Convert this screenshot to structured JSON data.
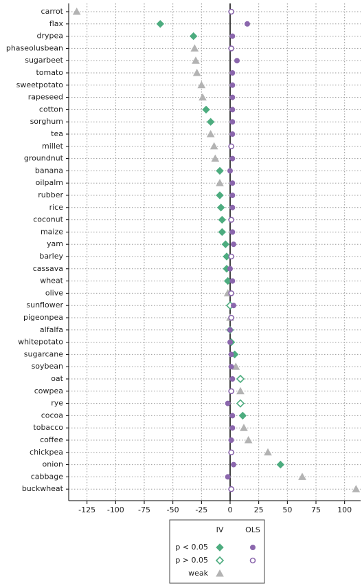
{
  "chart_data": {
    "type": "dot",
    "categories": [
      "carrot",
      "flax",
      "drypea",
      "phaseolusbean",
      "sugarbeet",
      "tomato",
      "sweetpotato",
      "rapeseed",
      "cotton",
      "sorghum",
      "tea",
      "millet",
      "groundnut",
      "banana",
      "oilpalm",
      "rubber",
      "rice",
      "coconut",
      "maize",
      "yam",
      "barley",
      "cassava",
      "wheat",
      "olive",
      "sunflower",
      "pigeonpea",
      "alfalfa",
      "whitepotato",
      "sugarcane",
      "soybean",
      "oat",
      "cowpea",
      "rye",
      "cocoa",
      "tobacco",
      "coffee",
      "chickpea",
      "onion",
      "cabbage",
      "buckwheat"
    ],
    "series": [
      {
        "name": "IV",
        "color": "#4dac7f",
        "values": [
          -134,
          -61,
          -32,
          -31,
          -30,
          -29,
          -25,
          -24,
          -21,
          -17,
          -17,
          -14,
          -13,
          -9,
          -9,
          -9,
          -8,
          -7,
          -7,
          -4,
          -3,
          -3,
          -2,
          -2,
          0,
          0,
          0,
          1,
          4,
          5,
          9,
          9,
          9,
          11,
          12,
          16,
          33,
          44,
          63,
          110
        ],
        "status": [
          "weak",
          "p < 0.05",
          "p < 0.05",
          "weak",
          "weak",
          "weak",
          "weak",
          "weak",
          "p < 0.05",
          "p < 0.05",
          "weak",
          "weak",
          "weak",
          "p < 0.05",
          "weak",
          "p < 0.05",
          "p < 0.05",
          "p < 0.05",
          "p < 0.05",
          "p < 0.05",
          "p < 0.05",
          "p < 0.05",
          "p < 0.05",
          "weak",
          "p > 0.05",
          "weak",
          "p < 0.05",
          "p < 0.05",
          "p < 0.05",
          "weak",
          "p > 0.05",
          "weak",
          "p > 0.05",
          "p < 0.05",
          "weak",
          "weak",
          "weak",
          "p < 0.05",
          "weak",
          "weak"
        ]
      },
      {
        "name": "OLS",
        "color": "#8b67ad",
        "values": [
          1,
          15,
          2,
          1,
          6,
          2,
          2,
          2,
          2,
          2,
          2,
          1,
          2,
          0,
          2,
          2,
          2,
          1,
          2,
          3,
          1,
          0,
          2,
          1,
          3,
          1,
          0,
          0,
          1,
          1,
          2,
          1,
          -2,
          2,
          2,
          1,
          1,
          3,
          -2,
          1
        ],
        "status": [
          "p > 0.05",
          "p < 0.05",
          "p < 0.05",
          "p > 0.05",
          "p < 0.05",
          "p < 0.05",
          "p < 0.05",
          "p < 0.05",
          "p < 0.05",
          "p < 0.05",
          "p < 0.05",
          "p > 0.05",
          "p < 0.05",
          "p < 0.05",
          "p < 0.05",
          "p < 0.05",
          "p < 0.05",
          "p > 0.05",
          "p < 0.05",
          "p < 0.05",
          "p > 0.05",
          "p < 0.05",
          "p < 0.05",
          "p > 0.05",
          "p < 0.05",
          "p > 0.05",
          "p < 0.05",
          "p < 0.05",
          "p < 0.05",
          "p < 0.05",
          "p < 0.05",
          "p > 0.05",
          "p < 0.05",
          "p < 0.05",
          "p < 0.05",
          "p < 0.05",
          "p > 0.05",
          "p < 0.05",
          "p < 0.05",
          "p > 0.05"
        ]
      }
    ],
    "weak_color": "#b3b3b3",
    "legend_rows": [
      "p < 0.05",
      "p > 0.05",
      "weak"
    ],
    "xlim": [
      -141,
      114
    ],
    "xticks": [
      -125,
      -100,
      -75,
      -50,
      -25,
      0,
      25,
      50,
      75,
      100
    ],
    "grid": true
  }
}
